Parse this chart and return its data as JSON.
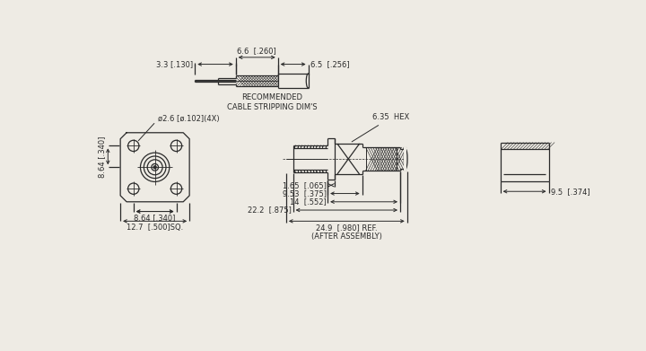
{
  "bg_color": "#eeebe4",
  "line_color": "#2a2a2a",
  "text_color": "#2a2a2a",
  "font_size": 6.0,
  "cable_label": "RECOMMENDED\nCABLE STRIPPING DIM'S",
  "dims_top": {
    "label_33": "3.3 [.130]",
    "label_66": "6.6  [.260]",
    "label_65": "6.5  [.256]"
  },
  "dims_front": {
    "label_hole": "ø2.6 [ø.102](4X)",
    "label_864v": "8.64 [.340]",
    "label_864h": "8.64 [.340]",
    "label_127": "12.7  [.500]SQ."
  },
  "dims_side": {
    "label_hex": "6.35  HEX",
    "label_165": "1.65  [.065]",
    "label_953": "9.53  [.375]",
    "label_14": "14  [.552]",
    "label_222": "22.2  [.875]",
    "label_249": "24.9  [.980] REF.\n(AFTER ASSEMBLY)"
  },
  "dims_end": {
    "label_95": "9.5  [.374]"
  }
}
